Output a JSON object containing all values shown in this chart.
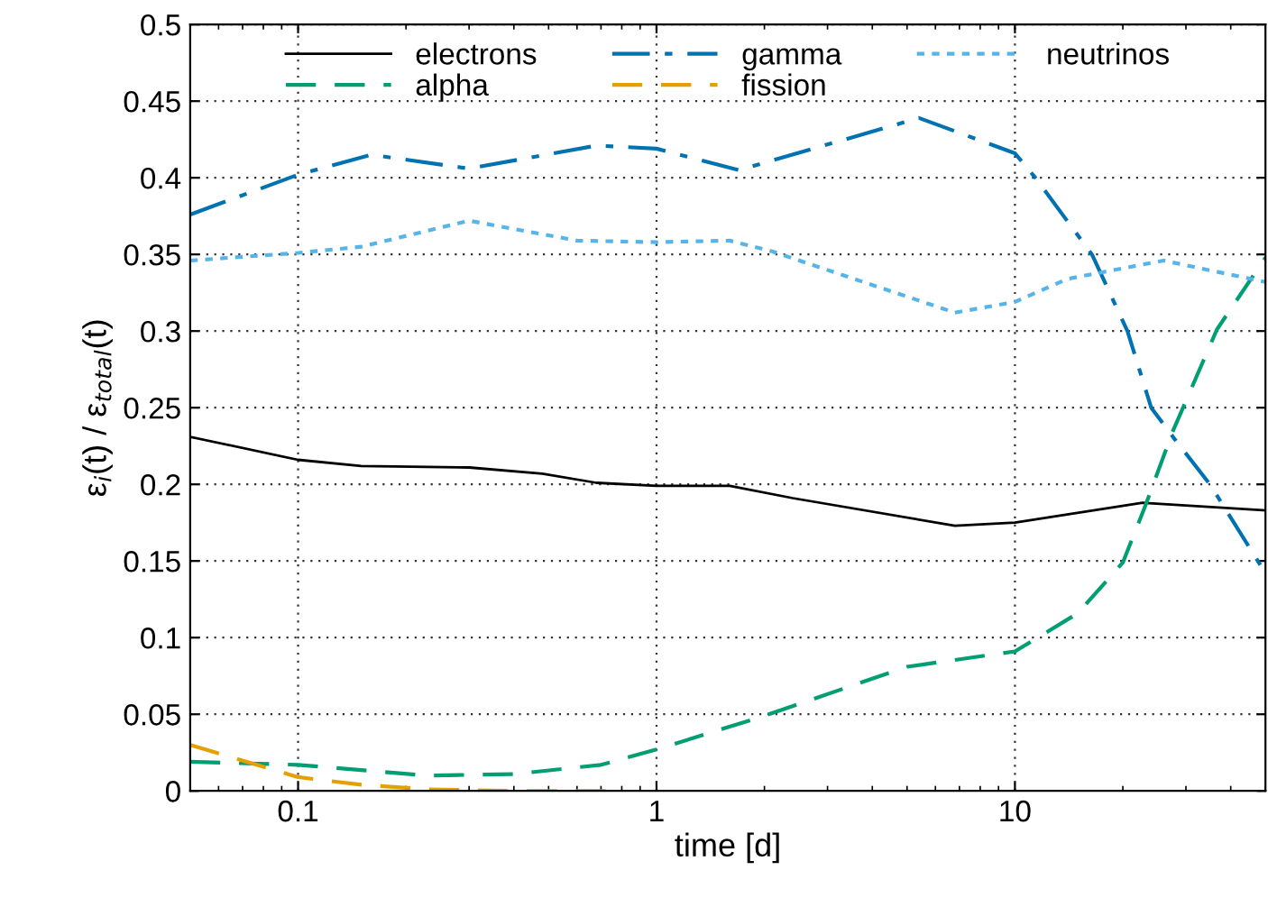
{
  "chart_data": {
    "type": "line",
    "xlabel": "time [d]",
    "ylabel": "ε$_{i}$(t) / ε$_{total}$(t)",
    "log": "x",
    "grid": true,
    "legend": "top",
    "marker": "none",
    "xlim": [
      0.05,
      50
    ],
    "xticks": [
      0.1,
      1,
      10
    ],
    "ylim": [
      0,
      0.5
    ],
    "yticks": [
      0,
      0.05,
      0.1,
      0.15,
      0.2,
      0.25,
      0.3,
      0.35,
      0.4,
      0.45,
      0.5
    ],
    "series": [
      {
        "name": "electrons",
        "color": "#000000",
        "line_style": "solid",
        "x": [
          0.05,
          0.1,
          0.15,
          0.3,
          0.48,
          0.68,
          1,
          1.6,
          2.4,
          6.8,
          10,
          22.7,
          50
        ],
        "values": [
          0.231,
          0.216,
          0.212,
          0.211,
          0.207,
          0.201,
          0.199,
          0.199,
          0.191,
          0.173,
          0.175,
          0.188,
          0.183
        ]
      },
      {
        "name": "alpha",
        "color": "#009e73",
        "line_style": "dashed",
        "x": [
          0.05,
          0.1,
          0.23,
          0.4,
          0.7,
          1,
          2,
          5,
          10,
          15,
          20,
          23.2,
          27.5,
          36.6,
          50
        ],
        "values": [
          0.019,
          0.017,
          0.01,
          0.011,
          0.017,
          0.027,
          0.049,
          0.081,
          0.091,
          0.116,
          0.149,
          0.187,
          0.234,
          0.301,
          0.348
        ]
      },
      {
        "name": "gamma",
        "color": "#0072b2",
        "line_style": "dashdot",
        "x": [
          0.05,
          0.1,
          0.16,
          0.3,
          0.68,
          1,
          1.7,
          5.4,
          10,
          11.4,
          16.4,
          20.6,
          24,
          27.8,
          35,
          50
        ],
        "values": [
          0.376,
          0.402,
          0.415,
          0.406,
          0.421,
          0.419,
          0.405,
          0.439,
          0.416,
          0.4,
          0.35,
          0.3,
          0.25,
          0.23,
          0.2,
          0.142
        ]
      },
      {
        "name": "fission",
        "color": "#e69f00",
        "line_style": "dashed",
        "x": [
          0.05,
          0.1,
          0.15,
          0.23,
          0.4,
          0.8
        ],
        "values": [
          0.03,
          0.009,
          0.004,
          0.001,
          0,
          0
        ]
      },
      {
        "name": "neutrinos",
        "color": "#56b4e9",
        "line_style": "dotted",
        "x": [
          0.05,
          0.1,
          0.15,
          0.3,
          0.6,
          1,
          1.6,
          2.1,
          6.8,
          10,
          14,
          26,
          50
        ],
        "values": [
          0.346,
          0.351,
          0.355,
          0.372,
          0.359,
          0.358,
          0.359,
          0.352,
          0.312,
          0.319,
          0.334,
          0.346,
          0.332
        ]
      }
    ]
  }
}
